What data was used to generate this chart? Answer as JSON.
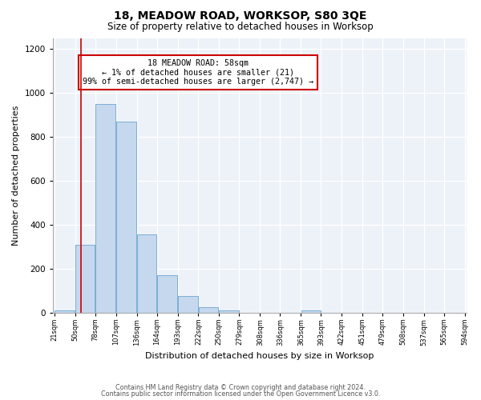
{
  "title": "18, MEADOW ROAD, WORKSOP, S80 3QE",
  "subtitle": "Size of property relative to detached houses in Worksop",
  "xlabel": "Distribution of detached houses by size in Worksop",
  "ylabel": "Number of detached properties",
  "bin_edges": [
    21,
    50,
    78,
    107,
    136,
    164,
    193,
    222,
    250,
    279,
    308,
    336,
    365,
    393,
    422,
    451,
    479,
    508,
    537,
    565,
    594
  ],
  "bin_counts": [
    10,
    310,
    950,
    870,
    355,
    170,
    75,
    25,
    10,
    0,
    0,
    0,
    10,
    0,
    0,
    0,
    0,
    0,
    0,
    0
  ],
  "bar_color": "#c5d8ee",
  "bar_edge_color": "#7aafd4",
  "background_color": "#edf2f8",
  "fig_background_color": "#ffffff",
  "grid_color": "#ffffff",
  "vline_x": 58,
  "vline_color": "#cc0000",
  "annotation_box_text": "18 MEADOW ROAD: 58sqm\n← 1% of detached houses are smaller (21)\n99% of semi-detached houses are larger (2,747) →",
  "annotation_box_color": "#cc0000",
  "ylim": [
    0,
    1250
  ],
  "yticks": [
    0,
    200,
    400,
    600,
    800,
    1000,
    1200
  ],
  "tick_labels": [
    "21sqm",
    "50sqm",
    "78sqm",
    "107sqm",
    "136sqm",
    "164sqm",
    "193sqm",
    "222sqm",
    "250sqm",
    "279sqm",
    "308sqm",
    "336sqm",
    "365sqm",
    "393sqm",
    "422sqm",
    "451sqm",
    "479sqm",
    "508sqm",
    "537sqm",
    "565sqm",
    "594sqm"
  ],
  "footer_line1": "Contains HM Land Registry data © Crown copyright and database right 2024.",
  "footer_line2": "Contains public sector information licensed under the Open Government Licence v3.0."
}
